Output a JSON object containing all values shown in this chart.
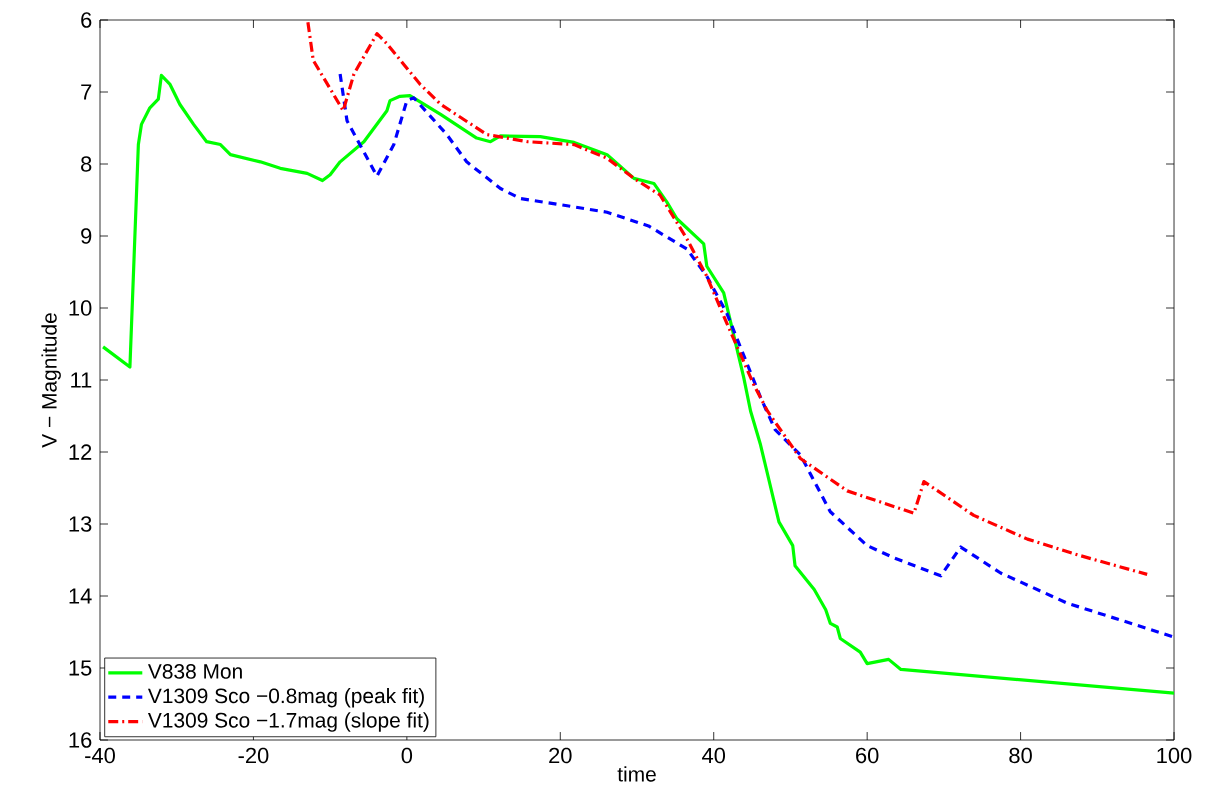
{
  "chart_data": {
    "type": "line",
    "xlabel": "time",
    "ylabel": "V − Magnitude",
    "xlim": [
      -40,
      100
    ],
    "ylim": [
      16,
      6
    ],
    "xticks": [
      -40,
      -20,
      0,
      20,
      40,
      60,
      80,
      100
    ],
    "yticks": [
      6,
      7,
      8,
      9,
      10,
      11,
      12,
      13,
      14,
      15,
      16
    ],
    "legend": "bottom left",
    "grid": false,
    "marker": "none",
    "series": [
      {
        "name": "V838 Mon",
        "color": "#00ff00",
        "line_style": "solid",
        "x": [
          -39.6,
          -36.1,
          -35.0,
          -34.6,
          -33.5,
          -32.4,
          -32.0,
          -30.9,
          -29.6,
          -27.8,
          -26.1,
          -24.3,
          -23.0,
          -19.1,
          -16.5,
          -13.0,
          -11.0,
          -10.0,
          -8.7,
          -5.6,
          -2.6,
          -2.2,
          -0.9,
          0.4,
          4.4,
          9.1,
          10.9,
          12.2,
          17.4,
          21.8,
          26.1,
          29.6,
          32.2,
          33.9,
          35.2,
          38.7,
          39.1,
          41.3,
          43.9,
          44.8,
          46.1,
          48.5,
          50.3,
          50.6,
          53.1,
          54.6,
          55.2,
          56.1,
          56.5,
          59.1,
          60.0,
          62.8,
          64.4,
          100
        ],
        "values": [
          10.54,
          10.82,
          7.73,
          7.45,
          7.22,
          7.1,
          6.77,
          6.89,
          7.17,
          7.45,
          7.69,
          7.73,
          7.87,
          7.97,
          8.06,
          8.13,
          8.23,
          8.15,
          7.97,
          7.69,
          7.26,
          7.12,
          7.06,
          7.05,
          7.31,
          7.64,
          7.69,
          7.61,
          7.62,
          7.7,
          7.87,
          8.2,
          8.27,
          8.53,
          8.76,
          9.11,
          9.42,
          9.79,
          10.96,
          11.43,
          11.9,
          12.97,
          13.3,
          13.58,
          13.91,
          14.19,
          14.38,
          14.43,
          14.59,
          14.78,
          14.94,
          14.88,
          15.02,
          15.35
        ]
      },
      {
        "name": "V1309 Sco −0.8mag (peak fit)",
        "color": "#0000ff",
        "line_style": "dashed",
        "x": [
          -8.7,
          -7.8,
          -3.9,
          -1.7,
          0.0,
          0.9,
          5.2,
          7.8,
          12.2,
          14.8,
          20.9,
          26.1,
          31.5,
          36.5,
          39.1,
          41.7,
          46.1,
          48.0,
          51.3,
          55.2,
          60.0,
          63.5,
          69.6,
          72.2,
          77.4,
          86.1,
          100
        ],
        "values": [
          6.75,
          7.4,
          8.17,
          7.73,
          7.12,
          7.08,
          7.59,
          7.97,
          8.34,
          8.48,
          8.58,
          8.67,
          8.86,
          9.18,
          9.56,
          10.07,
          11.24,
          11.69,
          12.04,
          12.83,
          13.3,
          13.47,
          13.72,
          13.32,
          13.68,
          14.1,
          14.57
        ]
      },
      {
        "name": "V1309 Sco −1.7mag (slope fit)",
        "color": "#ff0000",
        "line_style": "dashdot",
        "x": [
          -12.9,
          -12.2,
          -8.3,
          -6.9,
          -3.9,
          -2.6,
          1.7,
          4.4,
          10.4,
          15.7,
          21.8,
          26.1,
          29.6,
          33.0,
          36.5,
          39.1,
          41.7,
          45.2,
          47.0,
          51.3,
          57.4,
          66.1,
          67.4,
          73.9,
          80.9,
          87.8,
          96.5
        ],
        "values": [
          6.03,
          6.56,
          7.26,
          6.75,
          6.19,
          6.33,
          6.89,
          7.17,
          7.59,
          7.69,
          7.73,
          7.92,
          8.2,
          8.43,
          9.04,
          9.56,
          10.21,
          11.06,
          11.43,
          12.09,
          12.54,
          12.85,
          12.41,
          12.88,
          13.21,
          13.44,
          13.7
        ]
      }
    ]
  }
}
